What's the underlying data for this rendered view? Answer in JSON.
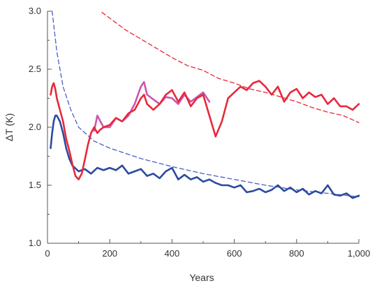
{
  "chart_data": {
    "type": "line",
    "xlabel": "Years",
    "ylabel": "ΔT (K)",
    "xlim": [
      0,
      1000
    ],
    "ylim": [
      1.0,
      3.0
    ],
    "x_ticks": [
      0,
      200,
      400,
      600,
      800,
      1000
    ],
    "x_tick_labels": [
      "0",
      "200",
      "400",
      "600",
      "800",
      "1,000"
    ],
    "y_ticks": [
      1.0,
      1.5,
      2.0,
      2.5,
      3.0
    ],
    "y_tick_labels": [
      "1.0",
      "1.5",
      "2.0",
      "2.5",
      "3.0"
    ],
    "grid": false,
    "colors": {
      "blue": "#2b4aa0",
      "red": "#e8283a",
      "magenta": "#cc55b0",
      "blue_dashed": "#4a5fc0",
      "red_dashed": "#e8283a",
      "axis": "#555555"
    },
    "series": [
      {
        "style": "dashed",
        "color": "blue_dashed",
        "x": [
          15,
          30,
          50,
          75,
          100,
          150,
          200,
          300,
          400,
          500,
          600,
          700,
          800,
          900,
          1000
        ],
        "y": [
          3.0,
          2.65,
          2.35,
          2.15,
          2.0,
          1.88,
          1.82,
          1.73,
          1.66,
          1.6,
          1.55,
          1.5,
          1.46,
          1.43,
          1.4
        ]
      },
      {
        "style": "dashed",
        "color": "red_dashed",
        "x": [
          175,
          200,
          250,
          300,
          350,
          400,
          450,
          500,
          550,
          600,
          650,
          700,
          750,
          800,
          850,
          900,
          950,
          1000
        ],
        "y": [
          2.99,
          2.94,
          2.84,
          2.76,
          2.68,
          2.6,
          2.53,
          2.49,
          2.42,
          2.38,
          2.33,
          2.3,
          2.26,
          2.22,
          2.17,
          2.13,
          2.1,
          2.04
        ]
      },
      {
        "style": "solid",
        "color": "blue",
        "x": [
          10,
          15,
          20,
          25,
          30,
          40,
          50,
          60,
          70,
          80,
          100,
          120,
          140,
          160,
          180,
          200,
          220,
          240,
          260,
          280,
          300,
          320,
          340,
          360,
          380,
          400,
          420,
          440,
          460,
          480,
          500,
          520,
          540,
          560,
          580,
          600,
          620,
          640,
          660,
          680,
          700,
          720,
          740,
          760,
          780,
          800,
          820,
          840,
          860,
          880,
          900,
          920,
          940,
          960,
          980,
          1000
        ],
        "y": [
          1.82,
          1.95,
          2.05,
          2.1,
          2.1,
          2.05,
          1.95,
          1.82,
          1.73,
          1.67,
          1.62,
          1.64,
          1.6,
          1.65,
          1.63,
          1.65,
          1.63,
          1.67,
          1.6,
          1.62,
          1.64,
          1.58,
          1.6,
          1.56,
          1.62,
          1.65,
          1.55,
          1.59,
          1.55,
          1.57,
          1.53,
          1.55,
          1.52,
          1.5,
          1.5,
          1.48,
          1.5,
          1.44,
          1.45,
          1.47,
          1.44,
          1.46,
          1.5,
          1.45,
          1.48,
          1.44,
          1.47,
          1.42,
          1.45,
          1.43,
          1.5,
          1.42,
          1.41,
          1.43,
          1.39,
          1.41
        ]
      },
      {
        "style": "solid",
        "color": "magenta",
        "x": [
          150,
          160,
          170,
          180,
          200,
          220,
          240,
          260,
          280,
          300,
          310,
          320,
          340,
          360,
          380,
          400,
          420,
          440,
          460,
          480,
          500,
          520
        ],
        "y": [
          1.97,
          2.1,
          2.05,
          2.0,
          2.0,
          2.08,
          2.05,
          2.1,
          2.2,
          2.35,
          2.39,
          2.28,
          2.24,
          2.2,
          2.26,
          2.25,
          2.2,
          2.28,
          2.22,
          2.26,
          2.3,
          2.22
        ]
      },
      {
        "style": "solid",
        "color": "red",
        "x": [
          10,
          15,
          20,
          25,
          30,
          40,
          50,
          60,
          70,
          80,
          90,
          100,
          110,
          120,
          130,
          140,
          150,
          160,
          170,
          180,
          200,
          220,
          240,
          260,
          280,
          300,
          310,
          320,
          340,
          360,
          380,
          400,
          420,
          440,
          460,
          480,
          500,
          520,
          540,
          560,
          580,
          600,
          620,
          640,
          660,
          680,
          700,
          720,
          740,
          760,
          780,
          800,
          820,
          840,
          860,
          880,
          900,
          920,
          940,
          960,
          980,
          1000
        ],
        "y": [
          2.28,
          2.35,
          2.38,
          2.33,
          2.25,
          2.15,
          2.05,
          1.9,
          1.8,
          1.68,
          1.58,
          1.55,
          1.6,
          1.72,
          1.85,
          1.95,
          2.0,
          1.95,
          1.98,
          2.0,
          2.02,
          2.08,
          2.05,
          2.12,
          2.15,
          2.25,
          2.28,
          2.2,
          2.15,
          2.2,
          2.28,
          2.32,
          2.22,
          2.3,
          2.18,
          2.25,
          2.28,
          2.1,
          1.92,
          2.05,
          2.25,
          2.3,
          2.35,
          2.32,
          2.38,
          2.4,
          2.35,
          2.28,
          2.35,
          2.22,
          2.3,
          2.33,
          2.25,
          2.3,
          2.26,
          2.28,
          2.2,
          2.25,
          2.18,
          2.18,
          2.15,
          2.2
        ]
      }
    ]
  }
}
